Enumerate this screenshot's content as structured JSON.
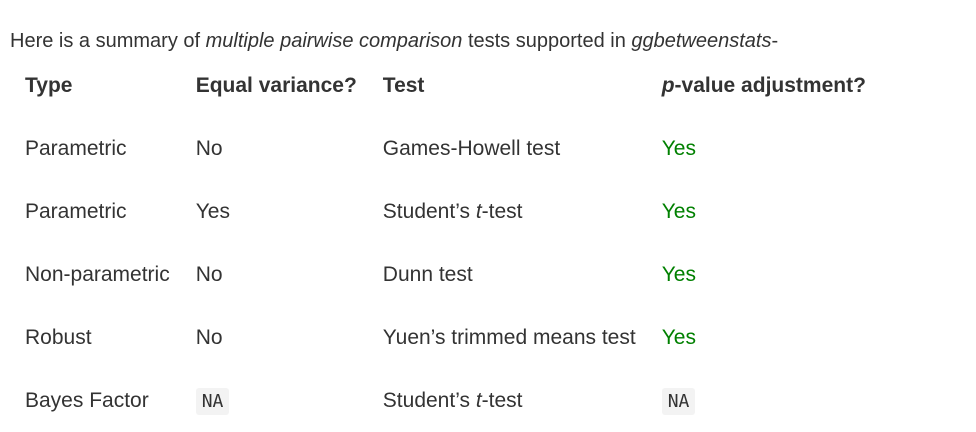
{
  "intro": {
    "prefix": "Here is a summary of ",
    "emphasis1": "multiple pairwise comparison",
    "middle": " tests supported in ",
    "emphasis2": "ggbetweenstats",
    "suffix": "-"
  },
  "table": {
    "headers": {
      "type": "Type",
      "equal_variance": "Equal variance?",
      "test": "Test",
      "p_prefix": "p",
      "p_rest": "-value adjustment?"
    },
    "rows": [
      {
        "type": "Parametric",
        "equal_variance": "No",
        "test_pre": "Games-Howell test",
        "test_em": "",
        "test_post": "",
        "adjustment": "Yes"
      },
      {
        "type": "Parametric",
        "equal_variance": "Yes",
        "test_pre": "Student’s ",
        "test_em": "t",
        "test_post": "-test",
        "adjustment": "Yes"
      },
      {
        "type": "Non-parametric",
        "equal_variance": "No",
        "test_pre": "Dunn test",
        "test_em": "",
        "test_post": "",
        "adjustment": "Yes"
      },
      {
        "type": "Robust",
        "equal_variance": "No",
        "test_pre": "Yuen’s trimmed means test",
        "test_em": "",
        "test_post": "",
        "adjustment": "Yes"
      },
      {
        "type": "Bayes Factor",
        "equal_variance": "NA",
        "test_pre": "Student’s ",
        "test_em": "t",
        "test_post": "-test",
        "adjustment": "NA"
      }
    ]
  },
  "colors": {
    "text": "#333333",
    "yes": "#008000",
    "code_bg": "#f3f3f3"
  }
}
